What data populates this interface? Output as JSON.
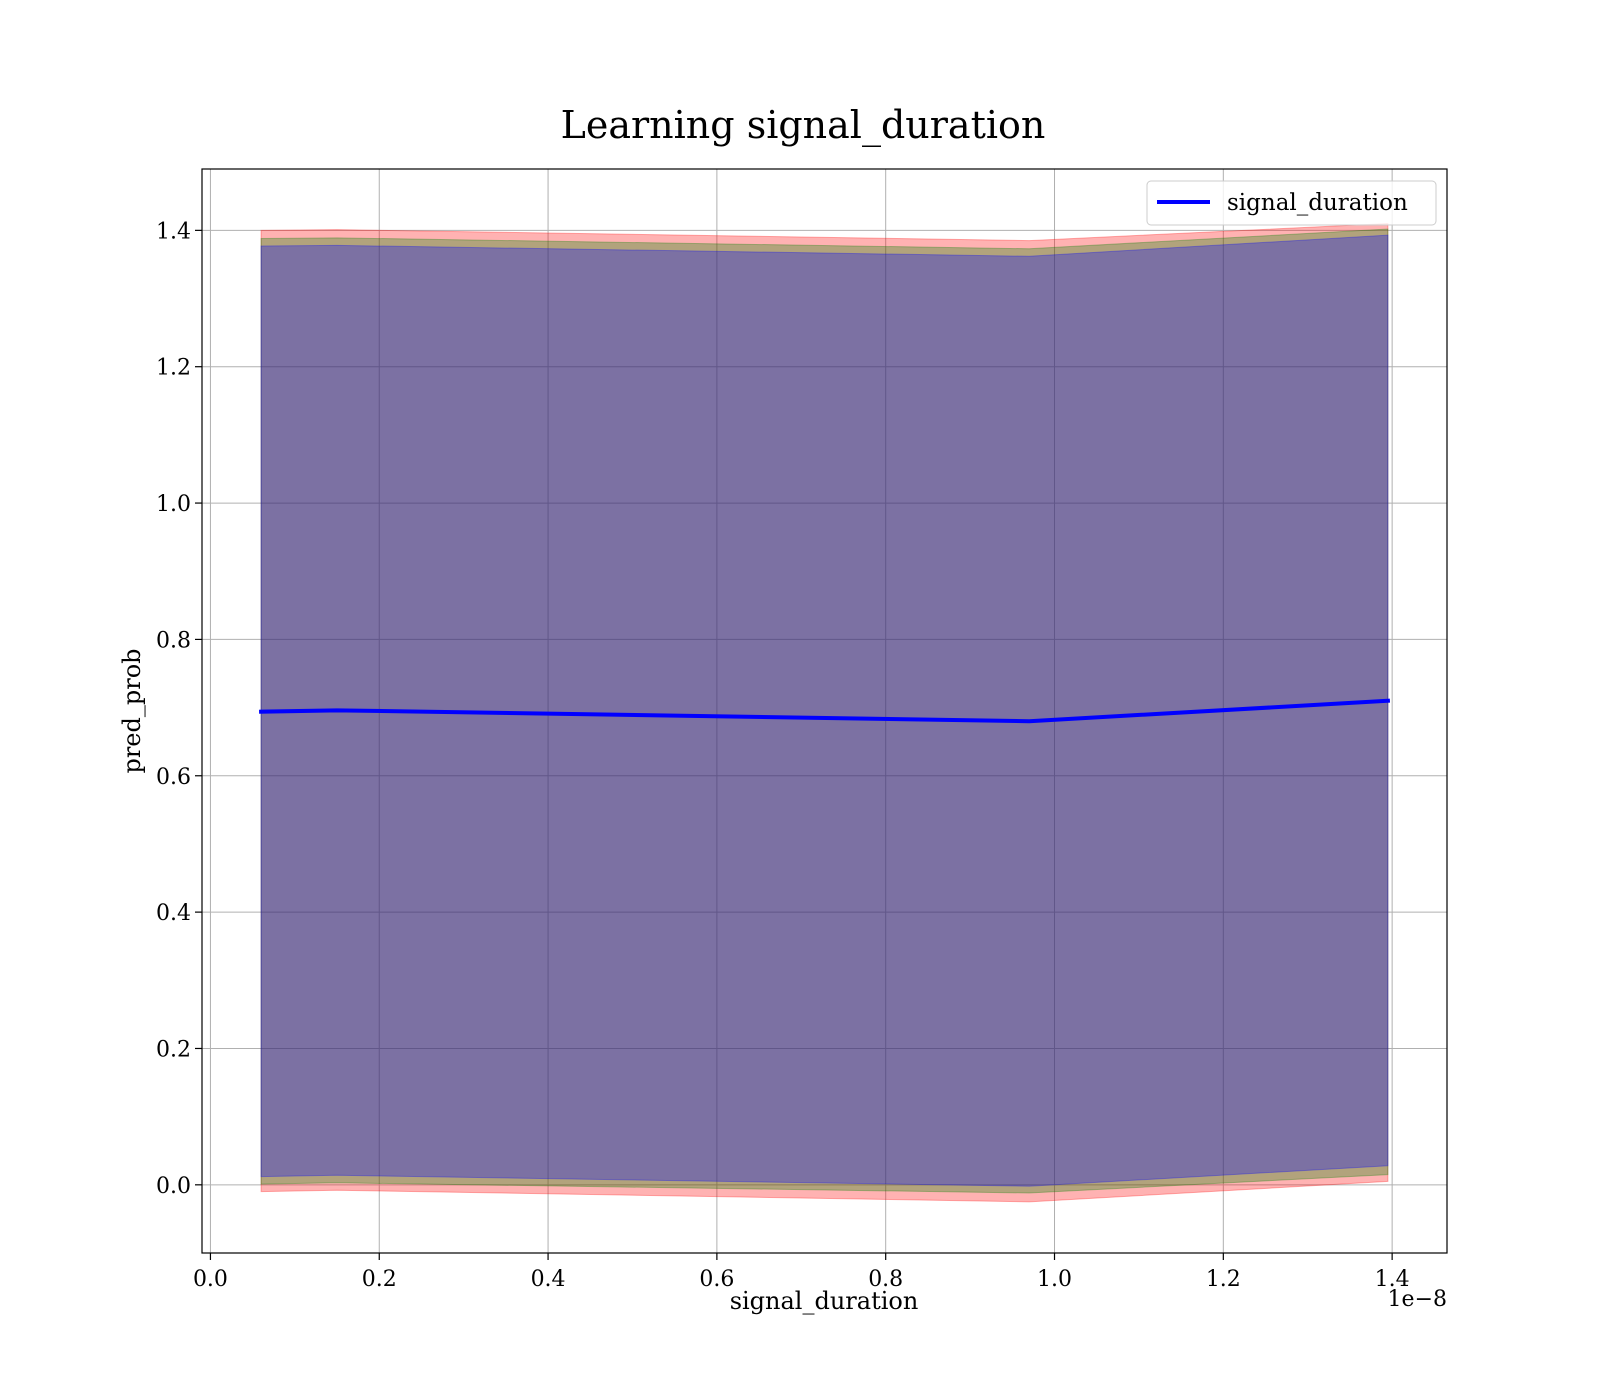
{
  "chart_data": {
    "type": "line",
    "title": "Learning signal_duration",
    "xlabel": "signal_duration",
    "ylabel": "pred_prob",
    "x_offset_text": "1e−8",
    "x_ticks": [
      "0.0",
      "0.2",
      "0.4",
      "0.6",
      "0.8",
      "1.0",
      "1.2",
      "1.4"
    ],
    "y_ticks": [
      "0.0",
      "0.2",
      "0.4",
      "0.6",
      "0.8",
      "1.0",
      "1.2",
      "1.4"
    ],
    "xlim": [
      -1e-10,
      1.465e-08
    ],
    "ylim": [
      -0.1,
      1.49
    ],
    "grid": true,
    "legend": {
      "position": "top-right",
      "entries": [
        "signal_duration"
      ]
    },
    "x": [
      6e-10,
      1.5e-09,
      9.7e-09,
      1.395e-08
    ],
    "series": [
      {
        "name": "signal_duration",
        "color": "#0000ff",
        "values": [
          0.694,
          0.696,
          0.68,
          0.71
        ]
      }
    ],
    "bands": [
      {
        "color": "#ff0000",
        "opacity": 0.3,
        "lower": [
          -0.01,
          -0.008,
          -0.025,
          0.005
        ],
        "upper": [
          1.4,
          1.401,
          1.385,
          1.41
        ]
      },
      {
        "color": "#008000",
        "opacity": 0.3,
        "lower": [
          0.001,
          0.003,
          -0.012,
          0.015
        ],
        "upper": [
          1.388,
          1.389,
          1.373,
          1.402
        ]
      },
      {
        "color": "#0000ff",
        "opacity": 0.3,
        "lower": [
          0.012,
          0.014,
          -0.002,
          0.028
        ],
        "upper": [
          1.377,
          1.378,
          1.362,
          1.393
        ]
      }
    ]
  }
}
